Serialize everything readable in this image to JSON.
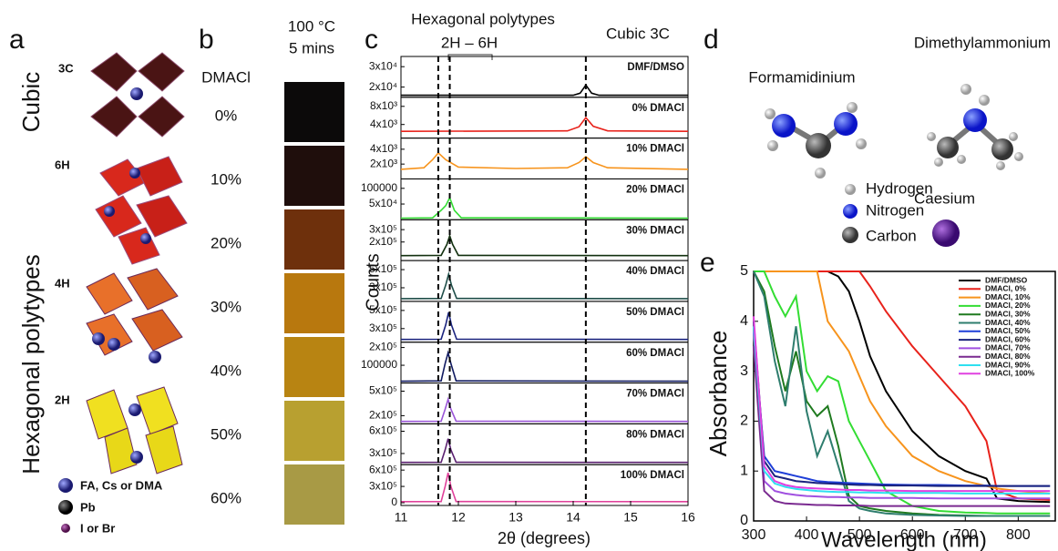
{
  "panels": {
    "a": {
      "label": "a",
      "groups": [
        "Cubic",
        "Hexagonal polytypes"
      ],
      "structures": [
        "3C",
        "6H",
        "4H",
        "2H"
      ],
      "legend": [
        "FA, Cs or DMA",
        "Pb",
        "I or Br"
      ]
    },
    "b": {
      "label": "b",
      "title": [
        "100 °C",
        "5 mins"
      ],
      "column_label": "DMACl",
      "samples": [
        {
          "label": "0%",
          "color": "#0c0a0a"
        },
        {
          "label": "10%",
          "color": "#1f0e0c"
        },
        {
          "label": "20%",
          "color": "#6e300c"
        },
        {
          "label": "30%",
          "color": "#b8780e"
        },
        {
          "label": "40%",
          "color": "#b88412"
        },
        {
          "label": "50%",
          "color": "#b8a030"
        },
        {
          "label": "60%",
          "color": "#a89a45"
        }
      ]
    },
    "c": {
      "label": "c"
    },
    "d": {
      "label": "d",
      "molecules": [
        "Formamidinium",
        "Dimethylammonium"
      ],
      "legend": [
        "Hydrogen",
        "Nitrogen",
        "Carbon",
        "Caesium"
      ]
    },
    "e": {
      "label": "e"
    }
  },
  "chart_data": [
    {
      "type": "stacked-line",
      "annotations": [
        "Hexagonal polytypes",
        "2H – 6H",
        "Cubic 3C"
      ],
      "xlabel": "2θ (degrees)",
      "ylabel": "Counts",
      "xlim": [
        11,
        16
      ],
      "xticks": [
        11,
        12,
        13,
        14,
        15,
        16
      ],
      "reference_lines": [
        11.65,
        11.85,
        14.22
      ],
      "series": [
        {
          "name": "DMF/DMSO",
          "color": "#000000",
          "x": [
            11,
            14.0,
            14.12,
            14.22,
            14.32,
            14.45,
            16
          ],
          "values": [
            16000,
            16000,
            17000,
            21000,
            17000,
            16000,
            16000
          ],
          "ylim": [
            15000,
            35000
          ],
          "yticks": [
            {
              "value": 20000,
              "label": "2x10⁴"
            },
            {
              "value": 30000,
              "label": "3x10⁴"
            }
          ]
        },
        {
          "name": "0% DMACl",
          "color": "#e8221b",
          "x": [
            11,
            13.9,
            14.1,
            14.22,
            14.35,
            14.6,
            16
          ],
          "values": [
            2500,
            2600,
            3500,
            5500,
            3600,
            2600,
            2500
          ],
          "ylim": [
            1000,
            10000
          ],
          "yticks": [
            {
              "value": 4000,
              "label": "4x10³"
            },
            {
              "value": 8000,
              "label": "8x10³"
            }
          ]
        },
        {
          "name": "10% DMACl",
          "color": "#f7941d",
          "x": [
            11,
            11.4,
            11.55,
            11.65,
            11.78,
            12.0,
            13.0,
            13.9,
            14.1,
            14.22,
            14.35,
            14.6,
            16
          ],
          "values": [
            1300,
            1500,
            2600,
            3500,
            2600,
            1600,
            1400,
            1500,
            2200,
            3000,
            2200,
            1500,
            1300
          ],
          "ylim": [
            0,
            5500
          ],
          "yticks": [
            {
              "value": 2000,
              "label": "2x10³"
            },
            {
              "value": 4000,
              "label": "4x10³"
            }
          ]
        },
        {
          "name": "20% DMACl",
          "color": "#33dd33",
          "x": [
            11,
            11.55,
            11.7,
            11.78,
            11.85,
            11.93,
            12.05,
            16
          ],
          "values": [
            5000,
            6000,
            30000,
            45000,
            70000,
            30000,
            6000,
            5000
          ],
          "ylim": [
            0,
            130000
          ],
          "yticks": [
            {
              "value": 50000,
              "label": "5x10⁴"
            },
            100000
          ]
        },
        {
          "name": "30% DMACl",
          "color": "#12300f",
          "x": [
            11,
            11.7,
            11.8,
            11.85,
            11.9,
            12.0,
            16
          ],
          "values": [
            90000,
            92000,
            180000,
            250000,
            180000,
            92000,
            90000
          ],
          "ylim": [
            50000,
            380000
          ],
          "yticks": [
            {
              "value": 200000,
              "label": "2x10⁵"
            },
            {
              "value": 300000,
              "label": "3x10⁵"
            }
          ]
        },
        {
          "name": "40% DMACl",
          "color": "#1e4d48",
          "x": [
            11,
            11.7,
            11.78,
            11.83,
            11.88,
            11.97,
            16
          ],
          "values": [
            180000,
            182000,
            330000,
            450000,
            330000,
            182000,
            180000
          ],
          "ylim": [
            150000,
            600000
          ],
          "yticks": [
            {
              "value": 300000,
              "label": "3x10⁵"
            },
            {
              "value": 500000,
              "label": "5x10⁵"
            }
          ]
        },
        {
          "name": "50% DMACl",
          "color": "#1a237e",
          "x": [
            11,
            11.7,
            11.78,
            11.83,
            11.88,
            11.97,
            16
          ],
          "values": [
            180000,
            182000,
            340000,
            480000,
            340000,
            182000,
            180000
          ],
          "ylim": [
            150000,
            600000
          ],
          "yticks": [
            {
              "value": 300000,
              "label": "3x10⁵"
            },
            {
              "value": 500000,
              "label": "5x10⁵"
            }
          ]
        },
        {
          "name": "60% DMACl",
          "color": "#101a60",
          "x": [
            11,
            11.7,
            11.77,
            11.82,
            11.87,
            11.96,
            16
          ],
          "values": [
            10000,
            12000,
            110000,
            170000,
            110000,
            12000,
            10000
          ],
          "ylim": [
            0,
            230000
          ],
          "yticks": [
            100000,
            {
              "value": 200000,
              "label": "2x10⁵"
            }
          ]
        },
        {
          "name": "70% DMACl",
          "color": "#9a55d8",
          "x": [
            11,
            11.7,
            11.77,
            11.82,
            11.87,
            11.96,
            16
          ],
          "values": [
            130000,
            132000,
            280000,
            400000,
            280000,
            132000,
            130000
          ],
          "ylim": [
            100000,
            600000
          ],
          "yticks": [
            {
              "value": 200000,
              "label": "2x10⁵"
            },
            {
              "value": 500000,
              "label": "5x10⁵"
            }
          ]
        },
        {
          "name": "80% DMACl",
          "color": "#5a2070",
          "x": [
            11,
            11.7,
            11.77,
            11.82,
            11.87,
            11.96,
            16
          ],
          "values": [
            180000,
            182000,
            350000,
            500000,
            350000,
            182000,
            180000
          ],
          "ylim": [
            150000,
            700000
          ],
          "yticks": [
            {
              "value": 300000,
              "label": "3x10⁵"
            },
            {
              "value": 600000,
              "label": "6x10⁵"
            }
          ]
        },
        {
          "name": "100% DMACl",
          "color": "#e0409a",
          "x": [
            11,
            11.7,
            11.77,
            11.82,
            11.87,
            11.96,
            16
          ],
          "values": [
            20000,
            22000,
            300000,
            550000,
            300000,
            22000,
            20000
          ],
          "ylim": [
            -50000,
            700000
          ],
          "yticks": [
            0,
            {
              "value": 300000,
              "label": "3x10⁵"
            },
            {
              "value": 600000,
              "label": "6x10⁵"
            }
          ]
        }
      ]
    },
    {
      "type": "line",
      "xlabel": "Wavelength (nm)",
      "ylabel": "Absorbance",
      "xlim": [
        300,
        870
      ],
      "xticks": [
        300,
        400,
        500,
        600,
        700,
        800
      ],
      "ylim": [
        0,
        5
      ],
      "yticks": [
        0,
        1,
        2,
        3,
        4,
        5
      ],
      "x": [
        300,
        320,
        340,
        360,
        380,
        400,
        420,
        440,
        460,
        480,
        500,
        520,
        550,
        600,
        650,
        700,
        740,
        760,
        800,
        860
      ],
      "series": [
        {
          "name": "DMF/DMSO",
          "color": "#000000",
          "values": [
            5,
            5,
            5,
            5,
            5,
            5,
            5,
            5,
            4.9,
            4.6,
            4.0,
            3.3,
            2.6,
            1.8,
            1.3,
            1.0,
            0.85,
            0.45,
            0.4,
            0.38
          ]
        },
        {
          "name": "DMACl, 0%",
          "color": "#e8221b",
          "values": [
            5,
            5,
            5,
            5,
            5,
            5,
            5,
            5,
            5,
            5,
            5,
            4.7,
            4.2,
            3.5,
            2.9,
            2.3,
            1.6,
            0.6,
            0.45,
            0.42
          ]
        },
        {
          "name": "DMACl, 10%",
          "color": "#f7941d",
          "values": [
            5,
            5,
            5,
            5,
            5,
            5,
            5,
            4.0,
            3.7,
            3.4,
            2.9,
            2.4,
            1.9,
            1.3,
            1.0,
            0.8,
            0.7,
            0.65,
            0.6,
            0.55
          ]
        },
        {
          "name": "DMACl, 20%",
          "color": "#33dd33",
          "values": [
            5,
            5,
            4.5,
            4.1,
            4.5,
            3.0,
            2.6,
            2.9,
            2.8,
            2.0,
            1.6,
            1.2,
            0.6,
            0.3,
            0.2,
            0.17,
            0.16,
            0.15,
            0.15,
            0.15
          ]
        },
        {
          "name": "DMACl, 30%",
          "color": "#1f7a1f",
          "values": [
            5,
            4.6,
            3.5,
            2.6,
            3.4,
            2.4,
            2.1,
            2.3,
            1.5,
            0.5,
            0.3,
            0.25,
            0.2,
            0.15,
            0.12,
            0.11,
            0.1,
            0.1,
            0.1,
            0.1
          ]
        },
        {
          "name": "DMACl, 40%",
          "color": "#2e7d6e",
          "values": [
            5,
            4.5,
            3.2,
            2.3,
            3.9,
            2.2,
            1.3,
            1.8,
            1.1,
            0.4,
            0.25,
            0.2,
            0.15,
            0.12,
            0.11,
            0.1,
            0.1,
            0.1,
            0.1,
            0.1
          ]
        },
        {
          "name": "DMACl, 50%",
          "color": "#1f3fd8",
          "values": [
            3.8,
            1.3,
            1.0,
            0.95,
            0.9,
            0.85,
            0.8,
            0.78,
            0.77,
            0.76,
            0.75,
            0.74,
            0.73,
            0.72,
            0.72,
            0.71,
            0.71,
            0.7,
            0.7,
            0.7
          ]
        },
        {
          "name": "DMACl, 60%",
          "color": "#1a237e",
          "values": [
            4.0,
            1.2,
            0.9,
            0.85,
            0.8,
            0.78,
            0.76,
            0.75,
            0.74,
            0.73,
            0.72,
            0.72,
            0.71,
            0.71,
            0.7,
            0.7,
            0.7,
            0.7,
            0.7,
            0.7
          ]
        },
        {
          "name": "DMACl, 70%",
          "color": "#a050e0",
          "values": [
            3.8,
            0.8,
            0.6,
            0.55,
            0.52,
            0.5,
            0.49,
            0.48,
            0.48,
            0.47,
            0.47,
            0.46,
            0.46,
            0.46,
            0.45,
            0.45,
            0.45,
            0.45,
            0.45,
            0.45
          ]
        },
        {
          "name": "DMACl, 80%",
          "color": "#7a2a90",
          "values": [
            3.5,
            0.6,
            0.4,
            0.35,
            0.34,
            0.33,
            0.32,
            0.32,
            0.31,
            0.31,
            0.31,
            0.3,
            0.3,
            0.3,
            0.3,
            0.3,
            0.3,
            0.3,
            0.3,
            0.3
          ]
        },
        {
          "name": "DMACl, 90%",
          "color": "#2ee0f0",
          "values": [
            3.9,
            1.0,
            0.75,
            0.68,
            0.64,
            0.62,
            0.6,
            0.59,
            0.58,
            0.58,
            0.57,
            0.57,
            0.56,
            0.56,
            0.56,
            0.55,
            0.55,
            0.55,
            0.55,
            0.55
          ]
        },
        {
          "name": "DMACl, 100%",
          "color": "#e040e0",
          "values": [
            4.1,
            1.1,
            0.8,
            0.72,
            0.68,
            0.66,
            0.65,
            0.64,
            0.63,
            0.62,
            0.62,
            0.61,
            0.61,
            0.6,
            0.6,
            0.6,
            0.6,
            0.6,
            0.6,
            0.6
          ]
        }
      ]
    }
  ]
}
